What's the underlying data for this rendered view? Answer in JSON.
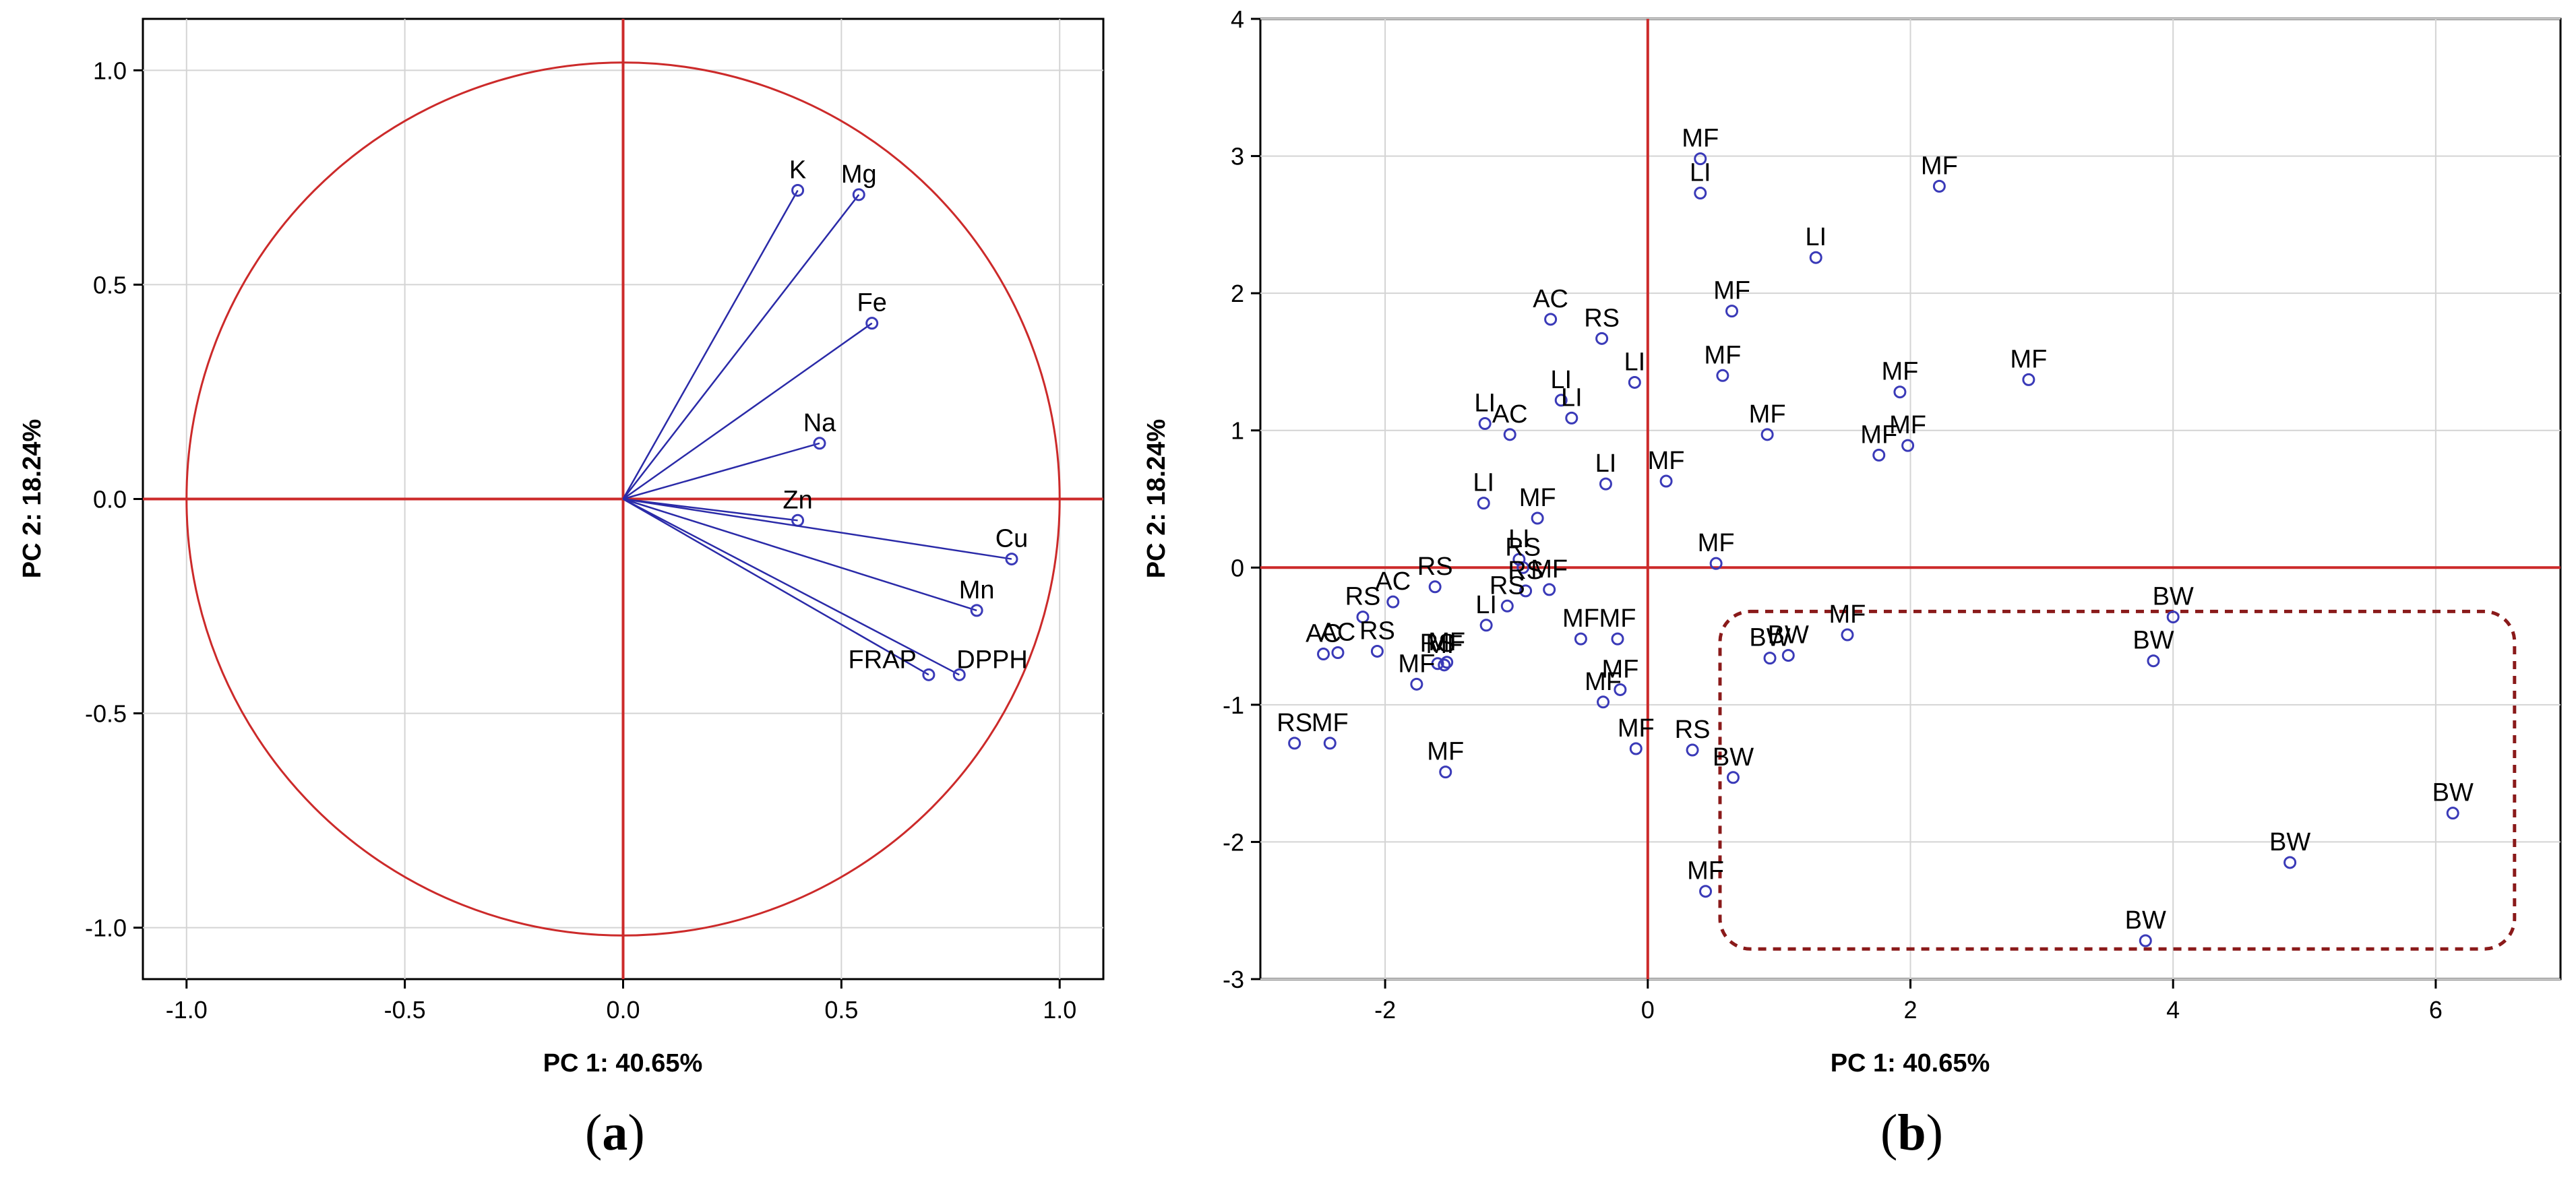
{
  "colors": {
    "vector": "#2a2aa8",
    "axis_line": "#cc2a2a",
    "circle": "#cc2a2a",
    "marker": "#3a3ab8",
    "grid": "#d4d4d4",
    "box": "#8a1a1a",
    "text": "#000000"
  },
  "chart_data": [
    {
      "id": "a",
      "type": "scatter",
      "subtype": "loading-plot",
      "panel_label": "a",
      "xlabel": "PC 1: 40.65%",
      "ylabel": "PC 2: 18.24%",
      "xlim": [
        -1.1,
        1.1
      ],
      "ylim": [
        -1.12,
        1.12
      ],
      "xticks": [
        -1.0,
        -0.5,
        0.0,
        0.5,
        1.0
      ],
      "yticks": [
        -1.0,
        -0.5,
        0.0,
        0.5,
        1.0
      ],
      "xtick_labels": [
        "-1.0",
        "-0.5",
        "0.0",
        "0.5",
        "1.0"
      ],
      "ytick_labels": [
        "-1.0",
        "-0.5",
        "0.0",
        "0.5",
        "1.0"
      ],
      "grid": true,
      "unit_circle": true,
      "variables": [
        {
          "label": "K",
          "x": 0.4,
          "y": 0.72
        },
        {
          "label": "Mg",
          "x": 0.54,
          "y": 0.71
        },
        {
          "label": "Fe",
          "x": 0.57,
          "y": 0.41
        },
        {
          "label": "Na",
          "x": 0.45,
          "y": 0.13
        },
        {
          "label": "Zn",
          "x": 0.4,
          "y": -0.05
        },
        {
          "label": "Cu",
          "x": 0.89,
          "y": -0.14
        },
        {
          "label": "Mn",
          "x": 0.81,
          "y": -0.26
        },
        {
          "label": "FRAP",
          "x": 0.7,
          "y": -0.41
        },
        {
          "label": "DPPH",
          "x": 0.77,
          "y": -0.41
        }
      ]
    },
    {
      "id": "b",
      "type": "scatter",
      "subtype": "score-plot",
      "panel_label": "b",
      "xlabel": "PC 1: 40.65%",
      "ylabel": "PC 2: 18.24%",
      "xlim": [
        -2.95,
        6.95
      ],
      "ylim": [
        -3,
        4
      ],
      "xticks": [
        -2,
        0,
        2,
        4,
        6
      ],
      "yticks": [
        -3,
        -2,
        -1,
        0,
        1,
        2,
        3,
        4
      ],
      "xtick_labels": [
        "-2",
        "0",
        "2",
        "4",
        "6"
      ],
      "ytick_labels": [
        "-3",
        "-2",
        "-1",
        "0",
        "1",
        "2",
        "3",
        "4"
      ],
      "grid": true,
      "highlight_region": {
        "x": [
          0.55,
          6.6
        ],
        "y": [
          -2.78,
          -0.32
        ],
        "style": "dashed"
      },
      "points": [
        {
          "label": "MF",
          "x": 0.4,
          "y": 2.98
        },
        {
          "label": "LI",
          "x": 0.4,
          "y": 2.73
        },
        {
          "label": "MF",
          "x": 2.22,
          "y": 2.78
        },
        {
          "label": "LI",
          "x": 1.28,
          "y": 2.26
        },
        {
          "label": "AC",
          "x": -0.74,
          "y": 1.81
        },
        {
          "label": "RS",
          "x": -0.35,
          "y": 1.67
        },
        {
          "label": "MF",
          "x": 0.64,
          "y": 1.87
        },
        {
          "label": "LI",
          "x": -0.1,
          "y": 1.35
        },
        {
          "label": "MF",
          "x": 0.57,
          "y": 1.4
        },
        {
          "label": "MF",
          "x": 1.92,
          "y": 1.28
        },
        {
          "label": "MF",
          "x": 2.9,
          "y": 1.37
        },
        {
          "label": "LI",
          "x": -1.24,
          "y": 1.05
        },
        {
          "label": "AC",
          "x": -1.05,
          "y": 0.97
        },
        {
          "label": "LI",
          "x": -0.66,
          "y": 1.22
        },
        {
          "label": "LI",
          "x": -0.58,
          "y": 1.09
        },
        {
          "label": "MF",
          "x": 0.91,
          "y": 0.97
        },
        {
          "label": "MF",
          "x": 1.76,
          "y": 0.82
        },
        {
          "label": "MF",
          "x": 1.98,
          "y": 0.89
        },
        {
          "label": "LI",
          "x": -0.32,
          "y": 0.61
        },
        {
          "label": "MF",
          "x": 0.14,
          "y": 0.63
        },
        {
          "label": "LI",
          "x": -1.25,
          "y": 0.47
        },
        {
          "label": "MF",
          "x": -0.84,
          "y": 0.36
        },
        {
          "label": "LI",
          "x": -0.98,
          "y": 0.06
        },
        {
          "label": "RS",
          "x": -0.95,
          "y": 0.0
        },
        {
          "label": "RS",
          "x": -1.62,
          "y": -0.14
        },
        {
          "label": "RS",
          "x": -0.93,
          "y": -0.17
        },
        {
          "label": "MF",
          "x": -0.75,
          "y": -0.16
        },
        {
          "label": "MF",
          "x": 0.52,
          "y": 0.03
        },
        {
          "label": "AC",
          "x": -1.94,
          "y": -0.25
        },
        {
          "label": "RS",
          "x": -2.17,
          "y": -0.36
        },
        {
          "label": "AC",
          "x": -2.47,
          "y": -0.63
        },
        {
          "label": "AC",
          "x": -2.36,
          "y": -0.62
        },
        {
          "label": "RS",
          "x": -2.06,
          "y": -0.61
        },
        {
          "label": "RS",
          "x": -1.07,
          "y": -0.28
        },
        {
          "label": "LI",
          "x": -1.23,
          "y": -0.42
        },
        {
          "label": "RS",
          "x": -1.6,
          "y": -0.7
        },
        {
          "label": "MF",
          "x": -1.53,
          "y": -0.69
        },
        {
          "label": "MF",
          "x": -1.55,
          "y": -0.71
        },
        {
          "label": "MF",
          "x": -1.76,
          "y": -0.85
        },
        {
          "label": "MF",
          "x": -0.51,
          "y": -0.52
        },
        {
          "label": "MF",
          "x": -0.23,
          "y": -0.52
        },
        {
          "label": "MF",
          "x": -0.21,
          "y": -0.89
        },
        {
          "label": "MF",
          "x": -0.34,
          "y": -0.98
        },
        {
          "label": "BW",
          "x": 0.93,
          "y": -0.66
        },
        {
          "label": "BW",
          "x": 1.07,
          "y": -0.64
        },
        {
          "label": "MF",
          "x": 1.52,
          "y": -0.49
        },
        {
          "label": "BW",
          "x": 4.0,
          "y": -0.36
        },
        {
          "label": "BW",
          "x": 3.85,
          "y": -0.68
        },
        {
          "label": "RS",
          "x": -2.69,
          "y": -1.28
        },
        {
          "label": "MF",
          "x": -2.42,
          "y": -1.28
        },
        {
          "label": "MF",
          "x": -1.54,
          "y": -1.49
        },
        {
          "label": "MF",
          "x": -0.09,
          "y": -1.32
        },
        {
          "label": "RS",
          "x": 0.34,
          "y": -1.33
        },
        {
          "label": "BW",
          "x": 0.65,
          "y": -1.53
        },
        {
          "label": "MF",
          "x": 0.44,
          "y": -2.36
        },
        {
          "label": "BW",
          "x": 3.79,
          "y": -2.72
        },
        {
          "label": "BW",
          "x": 4.89,
          "y": -2.15
        },
        {
          "label": "BW",
          "x": 6.13,
          "y": -1.79
        }
      ]
    }
  ]
}
